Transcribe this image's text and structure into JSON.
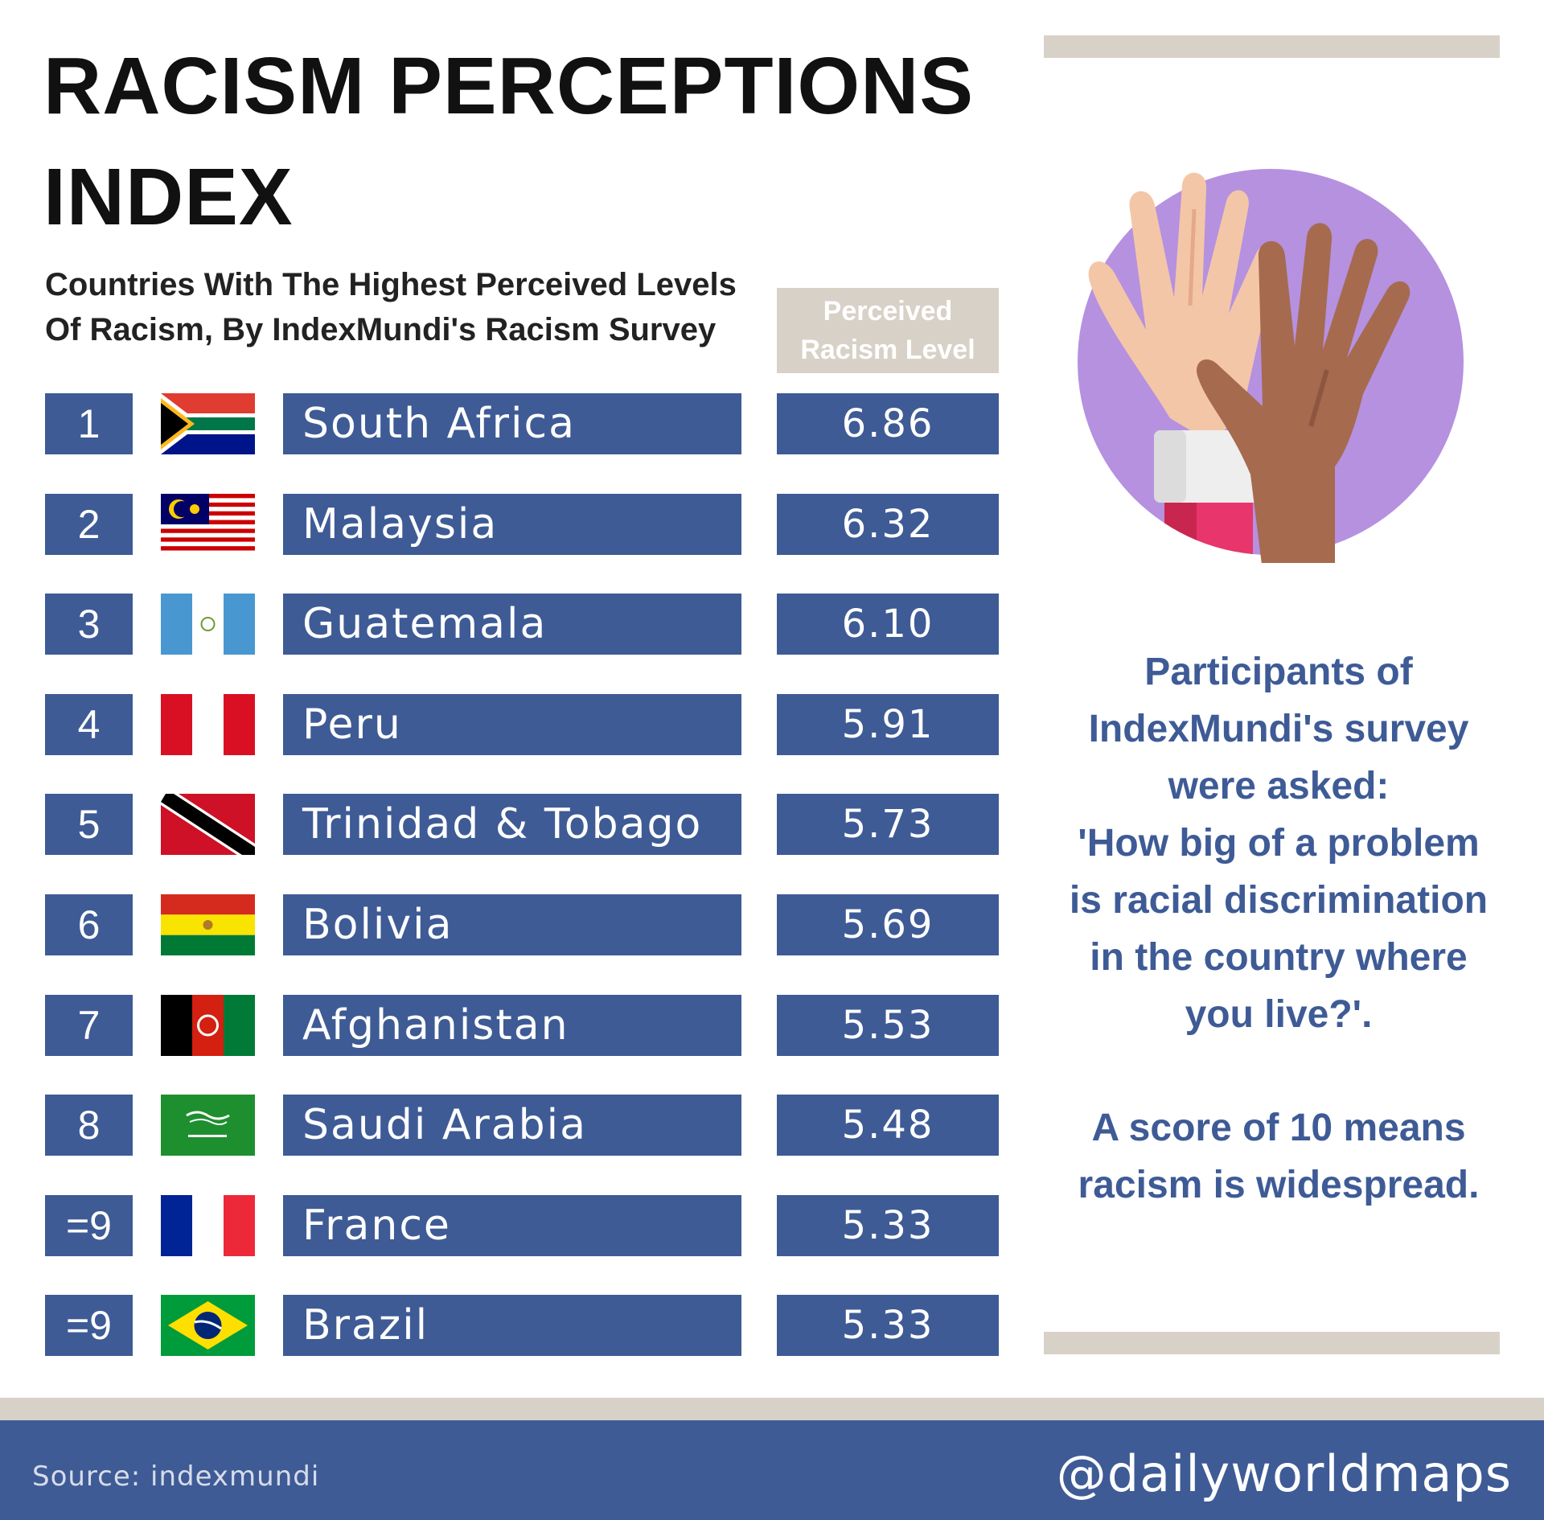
{
  "header": {
    "title_lines": [
      "RACISM PERCEPTIONS",
      "INDEX"
    ],
    "subtitle_lines": [
      "Countries With The Highest Perceived Levels",
      "Of Racism, By IndexMundi's Racism Survey"
    ]
  },
  "chart_data": {
    "type": "table",
    "value_header_lines": [
      "Perceived",
      "Racism Level"
    ],
    "rows": [
      {
        "rank": "1",
        "country": "South Africa",
        "value": "6.86",
        "flag_icon": "south-africa-flag-icon"
      },
      {
        "rank": "2",
        "country": "Malaysia",
        "value": "6.32",
        "flag_icon": "malaysia-flag-icon"
      },
      {
        "rank": "3",
        "country": "Guatemala",
        "value": "6.10",
        "flag_icon": "guatemala-flag-icon"
      },
      {
        "rank": "4",
        "country": "Peru",
        "value": "5.91",
        "flag_icon": "peru-flag-icon"
      },
      {
        "rank": "5",
        "country": "Trinidad & Tobago",
        "value": "5.73",
        "flag_icon": "trinidad-tobago-flag-icon"
      },
      {
        "rank": "6",
        "country": "Bolivia",
        "value": "5.69",
        "flag_icon": "bolivia-flag-icon"
      },
      {
        "rank": "7",
        "country": "Afghanistan",
        "value": "5.53",
        "flag_icon": "afghanistan-flag-icon"
      },
      {
        "rank": "8",
        "country": "Saudi Arabia",
        "value": "5.48",
        "flag_icon": "saudi-arabia-flag-icon"
      },
      {
        "rank": "=9",
        "country": "France",
        "value": "5.33",
        "flag_icon": "france-flag-icon"
      },
      {
        "rank": "=9",
        "country": "Brazil",
        "value": "5.33",
        "flag_icon": "brazil-flag-icon"
      }
    ]
  },
  "note": {
    "question_lines": [
      "Participants of",
      "IndexMundi's survey",
      "were asked:",
      "'How big of a problem",
      "is racial discrimination",
      "in the country where",
      "you live?'."
    ],
    "score_lines": [
      "A score of 10 means",
      "racism is widespread."
    ]
  },
  "illustration": {
    "icon": "raised-hands-icon"
  },
  "footer": {
    "source": "Source: indexmundi",
    "handle": "@dailyworldmaps"
  },
  "colors": {
    "accent_blue": "#3e5b96",
    "beige": "#d8d1c7",
    "purple_circle": "#b591e0"
  }
}
